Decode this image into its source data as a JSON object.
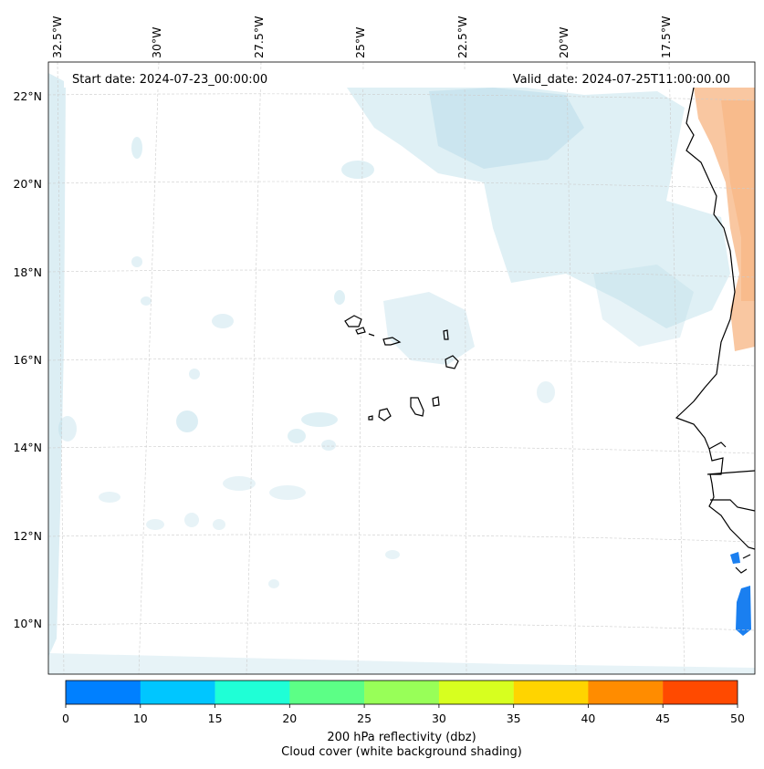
{
  "map": {
    "start_date_label": "Start date: 2024-07-23_00:00:00",
    "valid_date_label": "Valid_date: 2024-07-25T11:00:00.00",
    "lon_labels": [
      "32.5°W",
      "30°W",
      "27.5°W",
      "25°W",
      "22.5°W",
      "20°W",
      "17.5°W"
    ],
    "lat_labels": [
      "22°N",
      "20°N",
      "18°N",
      "16°N",
      "14°N",
      "12°N",
      "10°N"
    ]
  },
  "colorbar": {
    "title_line1": "200 hPa reflectivity (dbz)",
    "title_line2": "Cloud cover (white background shading)",
    "ticks": [
      "0",
      "10",
      "15",
      "20",
      "25",
      "30",
      "35",
      "40",
      "45",
      "50"
    ],
    "colors": [
      "#0080ff",
      "#00c6ff",
      "#1fffd6",
      "#5cff86",
      "#98ff58",
      "#d7ff1f",
      "#ffd400",
      "#ff8c00",
      "#ff4a00"
    ]
  },
  "colors": {
    "cloud": "#b9dde9",
    "warm": "#f7b98a",
    "echo": "#1a7ff0",
    "coast": "#000000",
    "grid": "#cccccc"
  }
}
